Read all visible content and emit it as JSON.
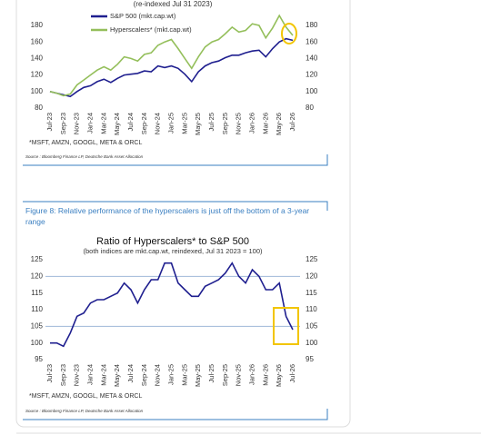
{
  "chart_data": [
    {
      "type": "line",
      "subtitle": "(re-indexed Jul 31 2023)",
      "categories": [
        "Jul-23",
        null,
        "Sep-23",
        null,
        "Nov-23",
        null,
        "Jan-24",
        null,
        "Mar-24",
        null,
        "May-24",
        null,
        "Jul-24",
        null,
        "Sep-24",
        null,
        "Nov-24",
        null,
        "Jan-25",
        null,
        "Mar-25",
        null,
        "May-25",
        null,
        "Jul-25",
        null,
        "Sep-25",
        null,
        "Nov-25",
        null,
        "Jan-26",
        null,
        "Mar-26",
        null,
        "May-26",
        null,
        "Jul-26"
      ],
      "series": [
        {
          "name": "S&P 500 (mkt.cap.wt)",
          "color": "#1f1f8f",
          "values": [
            100,
            98,
            96,
            94,
            100,
            105,
            107,
            112,
            115,
            111,
            116,
            120,
            121,
            122,
            125,
            124,
            131,
            129,
            131,
            128,
            121,
            112,
            124,
            131,
            135,
            137,
            141,
            144,
            144,
            147,
            149,
            150,
            142,
            152,
            160,
            164,
            162
          ]
        },
        {
          "name": "Hyperscalers* (mkt.cap.wt)",
          "color": "#94bf5b",
          "values": [
            100,
            98,
            95,
            97,
            108,
            114,
            120,
            126,
            130,
            126,
            133,
            142,
            140,
            137,
            145,
            147,
            156,
            160,
            163,
            152,
            140,
            128,
            142,
            154,
            160,
            163,
            170,
            178,
            172,
            174,
            182,
            180,
            165,
            177,
            192,
            178,
            168
          ]
        }
      ],
      "ylim": [
        80,
        194
      ],
      "yticks": [
        80,
        100,
        120,
        140,
        160,
        180
      ],
      "y2lim": [
        80,
        194
      ],
      "y2ticks": [
        80,
        100,
        120,
        140,
        160,
        180
      ],
      "footnote": "*MSFT, AMZN, GOOGL, META & ORCL",
      "source": "Source : Bloomberg Finance LP, Deutsche Bank Asset Allocation"
    },
    {
      "type": "line",
      "figure_caption": "Figure 8: Relative performance of the hyperscalers is just off the bottom of a 3-year range",
      "title": "Ratio of Hyperscalers* to S&P 500",
      "subtitle": "(both indices are mkt.cap.wt, reindexed, Jul 31 2023 = 100)",
      "categories": [
        "Jul-23",
        null,
        "Sep-23",
        null,
        "Nov-23",
        null,
        "Jan-24",
        null,
        "Mar-24",
        null,
        "May-24",
        null,
        "Jul-24",
        null,
        "Sep-24",
        null,
        "Nov-24",
        null,
        "Jan-25",
        null,
        "Mar-25",
        null,
        "May-25",
        null,
        "Jul-25",
        null,
        "Sep-25",
        null,
        "Nov-25",
        null,
        "Jan-26",
        null,
        "Mar-26",
        null,
        "May-26",
        null,
        "Jul-26"
      ],
      "series": [
        {
          "color": "#1f1f8f",
          "values": [
            100,
            100,
            99,
            103,
            108,
            109,
            112,
            113,
            113,
            114,
            115,
            118,
            116,
            112,
            116,
            119,
            119,
            124,
            124,
            118,
            116,
            114,
            114,
            117,
            118,
            119,
            121,
            124,
            120,
            118,
            122,
            120,
            116,
            116,
            118,
            108,
            104
          ]
        }
      ],
      "ylim": [
        95,
        125
      ],
      "yticks": [
        95,
        100,
        105,
        110,
        115,
        120,
        125
      ],
      "y2lim": [
        95,
        125
      ],
      "y2ticks": [
        95,
        100,
        105,
        110,
        115,
        120,
        125
      ],
      "hlines": [
        105,
        120
      ],
      "footnote": "*MSFT, AMZN, GOOGL, META & ORCL",
      "source": "Source : Bloomberg Finance LP, Deutsche Bank Asset Allocation"
    }
  ]
}
